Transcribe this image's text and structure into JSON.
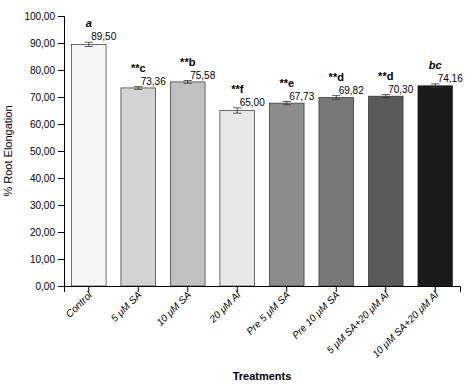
{
  "chart_data": {
    "type": "bar",
    "categories": [
      "Control",
      "5 μM SA",
      "10 μM SA",
      "20 μM Al",
      "Pre 5 μM SA",
      "Pre 10 μM SA",
      "5 μM SA+20 μM Al",
      "10 μM SA+20 μM Al"
    ],
    "values": [
      89.5,
      73.36,
      75.58,
      65.0,
      67.73,
      69.82,
      70.3,
      74.16
    ],
    "value_labels": [
      "89,50",
      "73,36",
      "75,58",
      "65,00",
      "67,73",
      "69,82",
      "70,30",
      "74,16"
    ],
    "errors": [
      0.8,
      0.5,
      0.5,
      1.0,
      0.6,
      0.7,
      0.6,
      0.7
    ],
    "annotations": [
      "a",
      "**c",
      "**b",
      "**f",
      "**e",
      "**d",
      "**d",
      "bc"
    ],
    "xlabel": "Treatments",
    "ylabel": "% Root Elongation",
    "ylim": [
      0,
      100
    ],
    "yticks": [
      {
        "value": 0,
        "label": "0,00"
      },
      {
        "value": 10,
        "label": "10,00"
      },
      {
        "value": 20,
        "label": "20,00"
      },
      {
        "value": 30,
        "label": "30,00"
      },
      {
        "value": 40,
        "label": "40,00"
      },
      {
        "value": 50,
        "label": "50,00"
      },
      {
        "value": 60,
        "label": "60,00"
      },
      {
        "value": 70,
        "label": "70,00"
      },
      {
        "value": 80,
        "label": "80,00"
      },
      {
        "value": 90,
        "label": "90,00"
      },
      {
        "value": 100,
        "label": "100,00"
      }
    ],
    "colors": [
      "#f5f5f5",
      "#d3d3d3",
      "#c0c0c0",
      "#e8e8e8",
      "#8c8c8c",
      "#787878",
      "#5a5a5a",
      "#1a1a1a"
    ],
    "data_labels": true,
    "grid": false
  }
}
